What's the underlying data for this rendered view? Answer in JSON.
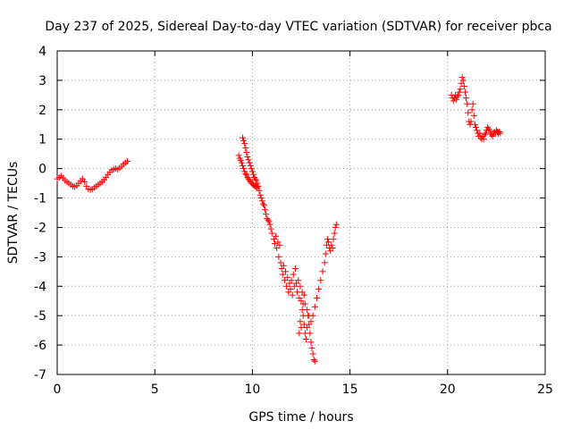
{
  "chart_data": {
    "type": "scatter",
    "title": "Day 237 of 2025, Sidereal Day-to-day VTEC variation (SDTVAR) for receiver pbca",
    "xlabel": "GPS time / hours",
    "ylabel": "SDTVAR / TECUs",
    "xlim": [
      0,
      25
    ],
    "ylim": [
      -7,
      4
    ],
    "xticks": [
      0,
      5,
      10,
      15,
      20,
      25
    ],
    "yticks": [
      -7,
      -6,
      -5,
      -4,
      -3,
      -2,
      -1,
      0,
      1,
      2,
      3,
      4
    ],
    "grid": true,
    "marker": "+",
    "color": "#ff0000",
    "series": [
      {
        "name": "SDTVAR",
        "points": [
          [
            0.0,
            -0.35
          ],
          [
            0.1,
            -0.3
          ],
          [
            0.2,
            -0.25
          ],
          [
            0.3,
            -0.32
          ],
          [
            0.4,
            -0.4
          ],
          [
            0.5,
            -0.45
          ],
          [
            0.6,
            -0.5
          ],
          [
            0.7,
            -0.55
          ],
          [
            0.8,
            -0.6
          ],
          [
            0.9,
            -0.62
          ],
          [
            1.0,
            -0.58
          ],
          [
            1.1,
            -0.5
          ],
          [
            1.2,
            -0.42
          ],
          [
            1.3,
            -0.35
          ],
          [
            1.4,
            -0.45
          ],
          [
            1.5,
            -0.6
          ],
          [
            1.6,
            -0.7
          ],
          [
            1.7,
            -0.72
          ],
          [
            1.8,
            -0.7
          ],
          [
            1.9,
            -0.65
          ],
          [
            2.0,
            -0.6
          ],
          [
            2.1,
            -0.55
          ],
          [
            2.2,
            -0.5
          ],
          [
            2.3,
            -0.45
          ],
          [
            2.4,
            -0.38
          ],
          [
            2.5,
            -0.3
          ],
          [
            2.6,
            -0.2
          ],
          [
            2.7,
            -0.12
          ],
          [
            2.8,
            -0.05
          ],
          [
            2.9,
            -0.02
          ],
          [
            3.0,
            0.0
          ],
          [
            3.1,
            -0.03
          ],
          [
            3.2,
            0.02
          ],
          [
            3.3,
            0.08
          ],
          [
            3.4,
            0.15
          ],
          [
            3.5,
            0.2
          ],
          [
            3.6,
            0.25
          ],
          [
            9.3,
            0.45
          ],
          [
            9.35,
            0.35
          ],
          [
            9.4,
            0.28
          ],
          [
            9.45,
            0.2
          ],
          [
            9.5,
            0.1
          ],
          [
            9.55,
            0.0
          ],
          [
            9.6,
            -0.1
          ],
          [
            9.65,
            -0.18
          ],
          [
            9.7,
            -0.22
          ],
          [
            9.75,
            -0.3
          ],
          [
            9.8,
            -0.35
          ],
          [
            9.85,
            -0.4
          ],
          [
            9.9,
            -0.45
          ],
          [
            9.95,
            -0.5
          ],
          [
            10.0,
            -0.5
          ],
          [
            10.05,
            -0.55
          ],
          [
            10.1,
            -0.58
          ],
          [
            10.15,
            -0.6
          ],
          [
            10.2,
            -0.62
          ],
          [
            10.25,
            -0.65
          ],
          [
            9.5,
            1.05
          ],
          [
            9.55,
            0.95
          ],
          [
            9.6,
            0.85
          ],
          [
            9.65,
            0.7
          ],
          [
            9.7,
            0.55
          ],
          [
            9.75,
            0.4
          ],
          [
            9.8,
            0.3
          ],
          [
            9.85,
            0.2
          ],
          [
            9.9,
            0.1
          ],
          [
            9.95,
            0.0
          ],
          [
            10.0,
            -0.1
          ],
          [
            10.05,
            -0.2
          ],
          [
            10.1,
            -0.3
          ],
          [
            10.15,
            -0.35
          ],
          [
            10.2,
            -0.4
          ],
          [
            10.25,
            -0.5
          ],
          [
            10.3,
            -0.6
          ],
          [
            10.35,
            -0.75
          ],
          [
            10.4,
            -0.9
          ],
          [
            10.45,
            -1.0
          ],
          [
            10.5,
            -1.1
          ],
          [
            10.55,
            -1.2
          ],
          [
            10.6,
            -1.25
          ],
          [
            10.65,
            -1.4
          ],
          [
            10.7,
            -1.55
          ],
          [
            10.75,
            -1.7
          ],
          [
            10.8,
            -1.75
          ],
          [
            10.85,
            -1.8
          ],
          [
            10.9,
            -1.9
          ],
          [
            10.95,
            -2.05
          ],
          [
            11.0,
            -2.2
          ],
          [
            11.1,
            -2.4
          ],
          [
            11.15,
            -2.55
          ],
          [
            11.2,
            -2.3
          ],
          [
            11.25,
            -2.7
          ],
          [
            11.3,
            -2.5
          ],
          [
            11.35,
            -3.0
          ],
          [
            11.4,
            -2.6
          ],
          [
            11.45,
            -3.2
          ],
          [
            11.5,
            -3.4
          ],
          [
            11.55,
            -3.6
          ],
          [
            11.6,
            -3.3
          ],
          [
            11.65,
            -3.8
          ],
          [
            11.7,
            -3.5
          ],
          [
            11.75,
            -4.0
          ],
          [
            11.8,
            -3.7
          ],
          [
            11.85,
            -4.2
          ],
          [
            11.9,
            -3.9
          ],
          [
            11.95,
            -4.1
          ],
          [
            12.0,
            -3.8
          ],
          [
            12.05,
            -4.3
          ],
          [
            12.1,
            -3.6
          ],
          [
            12.15,
            -4.0
          ],
          [
            12.2,
            -3.4
          ],
          [
            12.25,
            -3.9
          ],
          [
            12.3,
            -4.2
          ],
          [
            12.35,
            -3.8
          ],
          [
            12.4,
            -4.4
          ],
          [
            12.45,
            -4.0
          ],
          [
            12.5,
            -4.5
          ],
          [
            12.55,
            -4.2
          ],
          [
            12.6,
            -4.6
          ],
          [
            12.65,
            -4.3
          ],
          [
            12.4,
            -5.6
          ],
          [
            12.45,
            -5.2
          ],
          [
            12.5,
            -5.4
          ],
          [
            12.55,
            -4.8
          ],
          [
            12.6,
            -5.0
          ],
          [
            12.65,
            -5.3
          ],
          [
            12.7,
            -5.6
          ],
          [
            12.75,
            -5.8
          ],
          [
            12.8,
            -5.4
          ],
          [
            12.85,
            -5.0
          ],
          [
            12.9,
            -5.3
          ],
          [
            12.95,
            -5.6
          ],
          [
            13.0,
            -5.9
          ],
          [
            13.05,
            -6.1
          ],
          [
            13.1,
            -6.3
          ],
          [
            13.15,
            -6.5
          ],
          [
            13.2,
            -6.55
          ],
          [
            12.7,
            -4.6
          ],
          [
            12.8,
            -4.8
          ],
          [
            12.9,
            -5.0
          ],
          [
            13.0,
            -5.2
          ],
          [
            13.1,
            -5.0
          ],
          [
            13.2,
            -4.7
          ],
          [
            13.3,
            -4.4
          ],
          [
            13.4,
            -4.1
          ],
          [
            13.5,
            -3.8
          ],
          [
            13.6,
            -3.5
          ],
          [
            13.7,
            -3.2
          ],
          [
            13.75,
            -2.9
          ],
          [
            13.8,
            -2.6
          ],
          [
            13.85,
            -2.4
          ],
          [
            13.9,
            -2.5
          ],
          [
            13.95,
            -2.7
          ],
          [
            14.0,
            -2.8
          ],
          [
            14.05,
            -2.6
          ],
          [
            14.1,
            -2.7
          ],
          [
            14.15,
            -2.4
          ],
          [
            14.2,
            -2.2
          ],
          [
            14.25,
            -2.0
          ],
          [
            14.3,
            -1.9
          ],
          [
            20.2,
            2.5
          ],
          [
            20.25,
            2.4
          ],
          [
            20.3,
            2.3
          ],
          [
            20.35,
            2.4
          ],
          [
            20.4,
            2.5
          ],
          [
            20.45,
            2.35
          ],
          [
            20.5,
            2.45
          ],
          [
            20.55,
            2.5
          ],
          [
            20.6,
            2.6
          ],
          [
            20.65,
            2.7
          ],
          [
            20.7,
            2.9
          ],
          [
            20.75,
            3.1
          ],
          [
            20.8,
            3.0
          ],
          [
            20.85,
            2.8
          ],
          [
            20.9,
            2.6
          ],
          [
            20.95,
            2.4
          ],
          [
            21.0,
            2.2
          ],
          [
            21.05,
            1.9
          ],
          [
            21.1,
            1.6
          ],
          [
            21.15,
            1.5
          ],
          [
            21.2,
            1.6
          ],
          [
            21.25,
            2.0
          ],
          [
            21.3,
            2.2
          ],
          [
            21.35,
            1.8
          ],
          [
            21.4,
            1.5
          ],
          [
            21.45,
            1.4
          ],
          [
            21.5,
            1.3
          ],
          [
            21.55,
            1.2
          ],
          [
            21.6,
            1.1
          ],
          [
            21.65,
            1.2
          ],
          [
            21.7,
            1.05
          ],
          [
            21.75,
            1.0
          ],
          [
            21.8,
            1.1
          ],
          [
            21.85,
            1.0
          ],
          [
            21.9,
            1.15
          ],
          [
            21.95,
            1.2
          ],
          [
            22.0,
            1.3
          ],
          [
            22.05,
            1.4
          ],
          [
            22.1,
            1.35
          ],
          [
            22.15,
            1.3
          ],
          [
            22.2,
            1.2
          ],
          [
            22.25,
            1.15
          ],
          [
            22.3,
            1.1
          ],
          [
            22.35,
            1.2
          ],
          [
            22.4,
            1.25
          ],
          [
            22.45,
            1.2
          ],
          [
            22.5,
            1.3
          ],
          [
            22.55,
            1.25
          ],
          [
            22.6,
            1.2
          ],
          [
            22.65,
            1.25
          ],
          [
            22.7,
            1.2
          ]
        ]
      }
    ]
  }
}
